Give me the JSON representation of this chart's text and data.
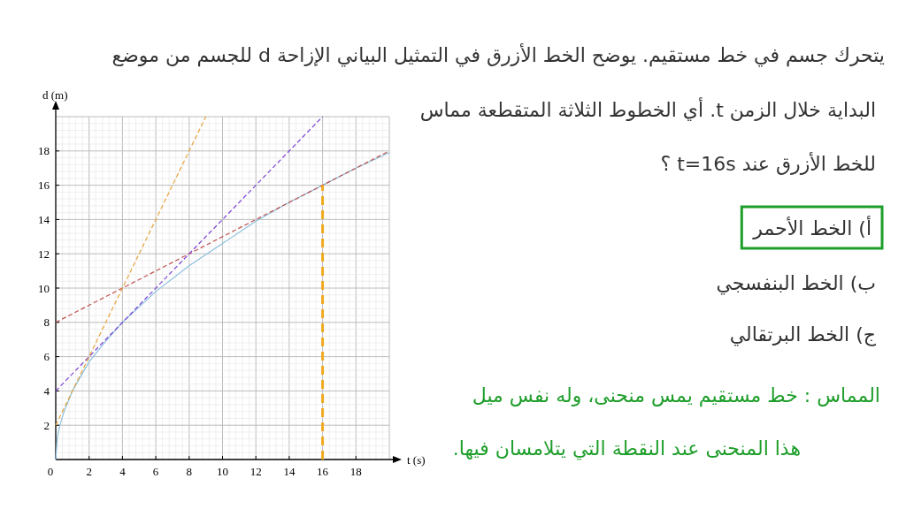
{
  "chart_data": {
    "type": "line",
    "xlabel": "t (s)",
    "ylabel": "d (m)",
    "xlim": [
      0,
      20
    ],
    "ylim": [
      0,
      20
    ],
    "xticks": [
      0,
      2,
      4,
      6,
      8,
      10,
      12,
      14,
      16,
      18
    ],
    "yticks": [
      2,
      4,
      6,
      8,
      10,
      12,
      14,
      16,
      18
    ],
    "grid": true,
    "series": [
      {
        "color": "#8cc0de",
        "line_style": "solid",
        "x": [
          0,
          0.1,
          0.25,
          0.5,
          1,
          2,
          3,
          4,
          6,
          8,
          10,
          12,
          14,
          16,
          18,
          20
        ],
        "values": [
          0,
          1.3,
          2,
          2.8,
          4,
          5.7,
          6.9,
          8,
          9.8,
          11.3,
          12.6,
          13.9,
          15,
          16,
          17,
          17.9
        ]
      },
      {
        "color": "#c0504d",
        "line_style": "dashed",
        "x": [
          0,
          20
        ],
        "values": [
          8,
          18
        ]
      },
      {
        "color": "#7b3fd6",
        "line_style": "dashed",
        "x": [
          0,
          16
        ],
        "values": [
          4,
          20
        ]
      },
      {
        "color": "#e8a33a",
        "line_style": "dashed",
        "x": [
          0,
          9
        ],
        "values": [
          2,
          20
        ]
      },
      {
        "color": "#f0a81c",
        "line_style": "dashed",
        "x": [
          16,
          16
        ],
        "values": [
          0,
          16
        ]
      }
    ],
    "annotations": [
      "يتحرك جسم في خط مستقيم. يوضح الخط الأزرق في التمثيل البياني الإزاحة d للجسم من موضع",
      "البداية خلال الزمن t. أي الخطوط الثلاثة المتقطعة مماس",
      "للخط الأزرق عند t=16s ؟",
      "أ) الخط الأحمر",
      "ب) الخط البنفسجي",
      "ج) الخط البرتقالي",
      "المماس : خط مستقيم يمس منحنى، وله نفس ميل",
      "هذا المنحنى عند النقطة التي يتلامسان فيها."
    ]
  }
}
